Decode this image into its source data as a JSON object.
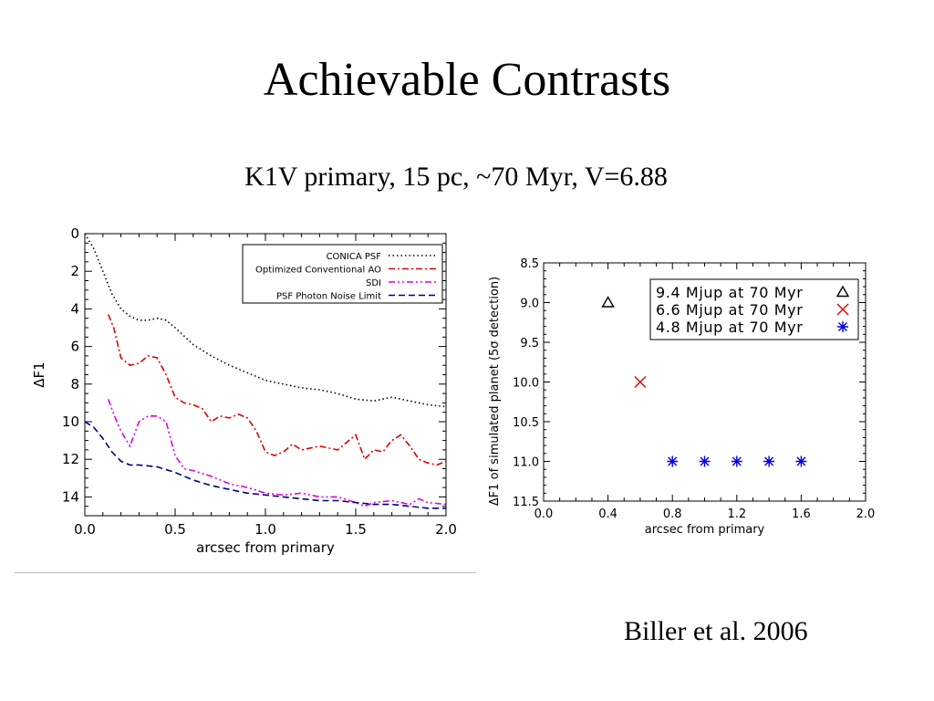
{
  "title": "Achievable Contrasts",
  "subtitle": "K1V primary, 15 pc, ~70 Myr, V=6.88",
  "citation": "Biller et al. 2006",
  "chart_data": [
    {
      "type": "line",
      "xlabel": "arcsec from primary",
      "ylabel": "ΔF1",
      "xlim": [
        0.0,
        2.0
      ],
      "ylim": [
        15,
        0
      ],
      "y_inverted": true,
      "xticks": [
        "0.0",
        "0.5",
        "1.0",
        "1.5",
        "2.0"
      ],
      "yticks": [
        "0",
        "2",
        "4",
        "6",
        "8",
        "10",
        "12",
        "14"
      ],
      "legend_position": "top-right",
      "series": [
        {
          "name": "CONICA PSF",
          "color": "#000000",
          "style": "dotted",
          "x": [
            0.0,
            0.05,
            0.1,
            0.15,
            0.2,
            0.25,
            0.3,
            0.35,
            0.4,
            0.45,
            0.5,
            0.6,
            0.7,
            0.8,
            0.9,
            1.0,
            1.1,
            1.2,
            1.3,
            1.4,
            1.5,
            1.6,
            1.7,
            1.8,
            1.9,
            2.0
          ],
          "y": [
            0.0,
            0.8,
            2.0,
            3.2,
            4.0,
            4.4,
            4.6,
            4.6,
            4.5,
            4.6,
            5.0,
            5.9,
            6.5,
            7.0,
            7.4,
            7.8,
            8.0,
            8.2,
            8.3,
            8.5,
            8.8,
            8.9,
            8.7,
            8.9,
            9.1,
            9.2
          ]
        },
        {
          "name": "Optimized Conventional AO",
          "color": "#e00000",
          "style": "dash-dot",
          "x": [
            0.13,
            0.16,
            0.2,
            0.25,
            0.3,
            0.35,
            0.4,
            0.45,
            0.5,
            0.55,
            0.6,
            0.65,
            0.7,
            0.75,
            0.8,
            0.85,
            0.9,
            0.95,
            1.0,
            1.05,
            1.1,
            1.15,
            1.2,
            1.3,
            1.4,
            1.5,
            1.55,
            1.6,
            1.65,
            1.7,
            1.75,
            1.8,
            1.85,
            1.9,
            1.95,
            2.0
          ],
          "y": [
            4.3,
            5.0,
            6.6,
            7.0,
            6.9,
            6.5,
            6.6,
            7.5,
            8.7,
            9.0,
            9.1,
            9.3,
            10.0,
            9.7,
            9.8,
            9.6,
            9.8,
            10.5,
            11.6,
            11.8,
            11.6,
            11.2,
            11.5,
            11.3,
            11.5,
            10.7,
            12.0,
            11.5,
            11.6,
            11.0,
            10.7,
            11.3,
            12.0,
            12.2,
            12.3,
            12.1
          ]
        },
        {
          "name": "SDI",
          "color": "#e000e0",
          "style": "dash-dot-dot",
          "x": [
            0.13,
            0.16,
            0.2,
            0.25,
            0.3,
            0.35,
            0.4,
            0.45,
            0.5,
            0.55,
            0.6,
            0.7,
            0.8,
            0.9,
            1.0,
            1.1,
            1.2,
            1.3,
            1.4,
            1.5,
            1.55,
            1.6,
            1.7,
            1.8,
            1.85,
            1.9,
            2.0
          ],
          "y": [
            8.8,
            9.6,
            10.5,
            11.3,
            10.0,
            9.7,
            9.7,
            10.0,
            11.8,
            12.5,
            12.6,
            12.9,
            13.3,
            13.5,
            13.8,
            13.9,
            13.8,
            14.0,
            14.0,
            14.3,
            14.5,
            14.3,
            14.2,
            14.4,
            14.1,
            14.3,
            14.4
          ]
        },
        {
          "name": "PSF Photon Noise Limit",
          "color": "#000080",
          "style": "dashed",
          "x": [
            0.0,
            0.05,
            0.1,
            0.15,
            0.2,
            0.25,
            0.3,
            0.4,
            0.5,
            0.6,
            0.7,
            0.8,
            0.9,
            1.0,
            1.1,
            1.2,
            1.3,
            1.4,
            1.5,
            1.6,
            1.7,
            1.8,
            1.9,
            2.0
          ],
          "y": [
            10.0,
            10.3,
            10.9,
            11.6,
            12.1,
            12.3,
            12.3,
            12.4,
            12.7,
            13.1,
            13.4,
            13.6,
            13.8,
            13.9,
            14.0,
            14.1,
            14.2,
            14.2,
            14.3,
            14.4,
            14.4,
            14.5,
            14.6,
            14.6
          ]
        }
      ]
    },
    {
      "type": "scatter",
      "xlabel": "arcsec from primary",
      "ylabel": "ΔF1 of simulated planet (5σ detection)",
      "xlim": [
        0.0,
        2.0
      ],
      "ylim": [
        11.5,
        8.5
      ],
      "y_inverted": true,
      "xticks": [
        "0.0",
        "0.4",
        "0.8",
        "1.2",
        "1.6",
        "2.0"
      ],
      "yticks": [
        "8.5",
        "9.0",
        "9.5",
        "10.0",
        "10.5",
        "11.0",
        "11.5"
      ],
      "legend_position": "top-right",
      "series": [
        {
          "name": "9.4 Mjup at 70 Myr",
          "marker": "triangle",
          "color": "#000000",
          "x": [
            0.4
          ],
          "y": [
            9.0
          ]
        },
        {
          "name": "6.6 Mjup at 70 Myr",
          "marker": "x",
          "color": "#e00000",
          "x": [
            0.6
          ],
          "y": [
            10.0
          ]
        },
        {
          "name": "4.8 Mjup at 70 Myr",
          "marker": "asterisk",
          "color": "#0000e0",
          "x": [
            0.8,
            1.0,
            1.2,
            1.4,
            1.6
          ],
          "y": [
            11.0,
            11.0,
            11.0,
            11.0,
            11.0
          ]
        }
      ]
    }
  ]
}
